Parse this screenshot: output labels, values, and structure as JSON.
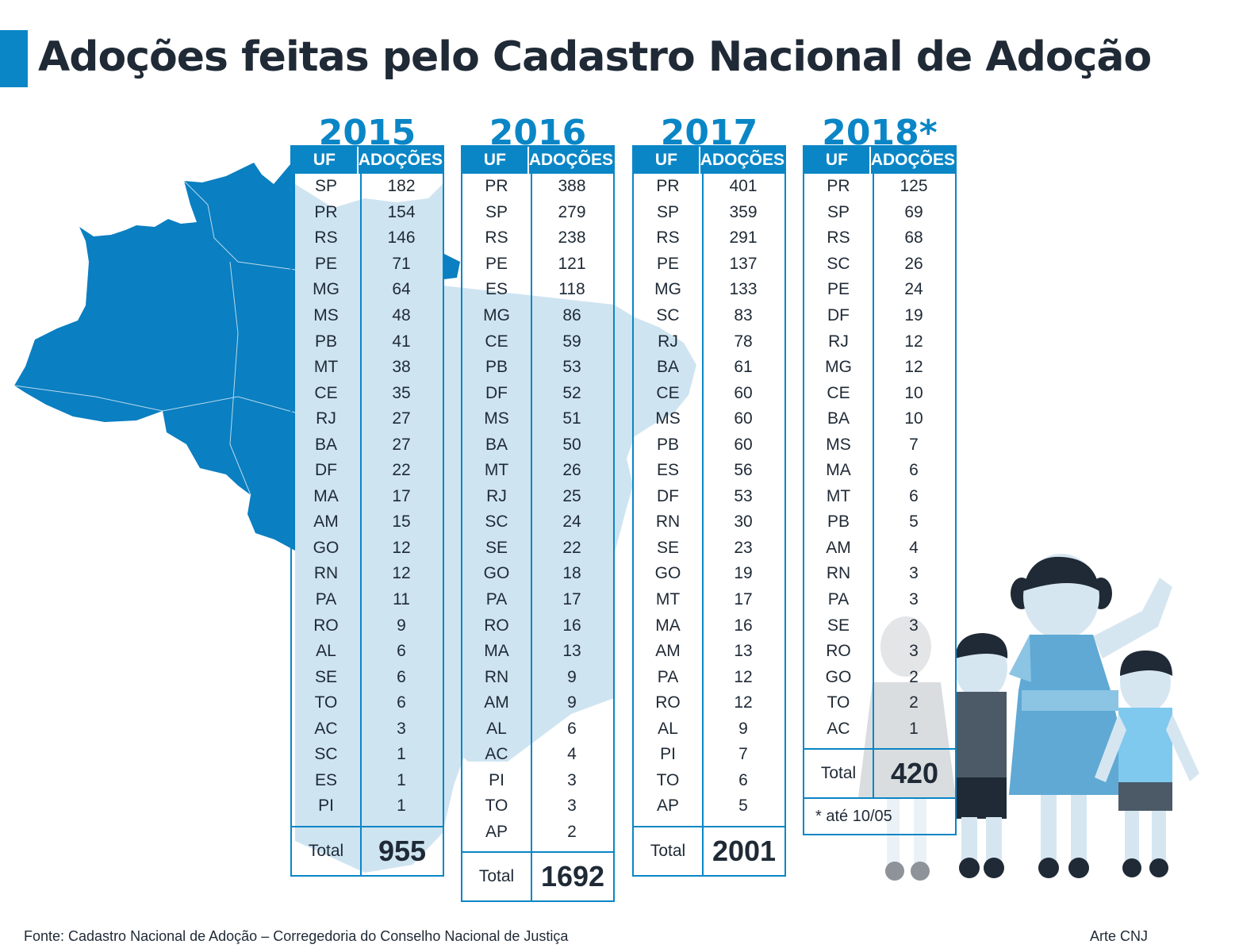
{
  "title": "Adoções feitas pelo Cadastro Nacional de Adoção",
  "colors": {
    "accent": "#0a86c6",
    "map_dark": "#0a7fc1",
    "map_light": "#cfe4f1",
    "text": "#1f2a36"
  },
  "icons": [
    "brazil-map-illustration",
    "children-illustration"
  ],
  "source": "Fonte: Cadastro Nacional de Adoção – Corregedoria do Conselho Nacional de Justiça",
  "credit": "Arte CNJ",
  "chart_data": {
    "type": "table",
    "columns": [
      "UF",
      "ADOÇÕES"
    ],
    "total_label": "Total",
    "tables": [
      {
        "year": "2015",
        "rows": [
          [
            "SP",
            "182"
          ],
          [
            "PR",
            "154"
          ],
          [
            "RS",
            "146"
          ],
          [
            "PE",
            "71"
          ],
          [
            "MG",
            "64"
          ],
          [
            "MS",
            "48"
          ],
          [
            "PB",
            "41"
          ],
          [
            "MT",
            "38"
          ],
          [
            "CE",
            "35"
          ],
          [
            "RJ",
            "27"
          ],
          [
            "BA",
            "27"
          ],
          [
            "DF",
            "22"
          ],
          [
            "MA",
            "17"
          ],
          [
            "AM",
            "15"
          ],
          [
            "GO",
            "12"
          ],
          [
            "RN",
            "12"
          ],
          [
            "PA",
            "11"
          ],
          [
            "RO",
            "9"
          ],
          [
            "AL",
            "6"
          ],
          [
            "SE",
            "6"
          ],
          [
            "TO",
            "6"
          ],
          [
            "AC",
            "3"
          ],
          [
            "SC",
            "1"
          ],
          [
            "ES",
            "1"
          ],
          [
            "PI",
            "1"
          ]
        ],
        "total": "955",
        "note": ""
      },
      {
        "year": "2016",
        "rows": [
          [
            "PR",
            "388"
          ],
          [
            "SP",
            "279"
          ],
          [
            "RS",
            "238"
          ],
          [
            "PE",
            "121"
          ],
          [
            "ES",
            "118"
          ],
          [
            "MG",
            "86"
          ],
          [
            "CE",
            "59"
          ],
          [
            "PB",
            "53"
          ],
          [
            "DF",
            "52"
          ],
          [
            "MS",
            "51"
          ],
          [
            "BA",
            "50"
          ],
          [
            "MT",
            "26"
          ],
          [
            "RJ",
            "25"
          ],
          [
            "SC",
            "24"
          ],
          [
            "SE",
            "22"
          ],
          [
            "GO",
            "18"
          ],
          [
            "PA",
            "17"
          ],
          [
            "RO",
            "16"
          ],
          [
            "MA",
            "13"
          ],
          [
            "RN",
            "9"
          ],
          [
            "AM",
            "9"
          ],
          [
            "AL",
            "6"
          ],
          [
            "AC",
            "4"
          ],
          [
            "PI",
            "3"
          ],
          [
            "TO",
            "3"
          ],
          [
            "AP",
            "2"
          ]
        ],
        "total": "1692",
        "note": ""
      },
      {
        "year": "2017",
        "rows": [
          [
            "PR",
            "401"
          ],
          [
            "SP",
            "359"
          ],
          [
            "RS",
            "291"
          ],
          [
            "PE",
            "137"
          ],
          [
            "MG",
            "133"
          ],
          [
            "SC",
            "83"
          ],
          [
            "RJ",
            "78"
          ],
          [
            "BA",
            "61"
          ],
          [
            "CE",
            "60"
          ],
          [
            "MS",
            "60"
          ],
          [
            "PB",
            "60"
          ],
          [
            "ES",
            "56"
          ],
          [
            "DF",
            "53"
          ],
          [
            "RN",
            "30"
          ],
          [
            "SE",
            "23"
          ],
          [
            "GO",
            "19"
          ],
          [
            "MT",
            "17"
          ],
          [
            "MA",
            "16"
          ],
          [
            "AM",
            "13"
          ],
          [
            "PA",
            "12"
          ],
          [
            "RO",
            "12"
          ],
          [
            "AL",
            "9"
          ],
          [
            "PI",
            "7"
          ],
          [
            "TO",
            "6"
          ],
          [
            "AP",
            "5"
          ]
        ],
        "total": "2001",
        "note": ""
      },
      {
        "year": "2018*",
        "rows": [
          [
            "PR",
            "125"
          ],
          [
            "SP",
            "69"
          ],
          [
            "RS",
            "68"
          ],
          [
            "SC",
            "26"
          ],
          [
            "PE",
            "24"
          ],
          [
            "DF",
            "19"
          ],
          [
            "RJ",
            "12"
          ],
          [
            "MG",
            "12"
          ],
          [
            "CE",
            "10"
          ],
          [
            "BA",
            "10"
          ],
          [
            "MS",
            "7"
          ],
          [
            "MA",
            "6"
          ],
          [
            "MT",
            "6"
          ],
          [
            "PB",
            "5"
          ],
          [
            "AM",
            "4"
          ],
          [
            "RN",
            "3"
          ],
          [
            "PA",
            "3"
          ],
          [
            "SE",
            "3"
          ],
          [
            "RO",
            "3"
          ],
          [
            "GO",
            "2"
          ],
          [
            "TO",
            "2"
          ],
          [
            "AC",
            "1"
          ]
        ],
        "total": "420",
        "note": "* até 10/05"
      }
    ]
  }
}
